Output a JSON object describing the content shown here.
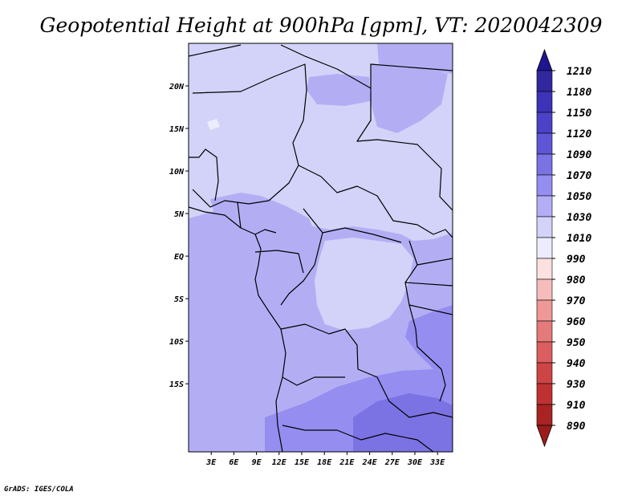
{
  "title": "Geopotential Height at 900hPa [gpm], VT: 2020042309",
  "credit": "GrADS: IGES/COLA",
  "map": {
    "lat_range": [
      -23,
      25
    ],
    "lon_range": [
      0,
      35
    ],
    "lat_ticks": [
      {
        "value": 20,
        "label": "20N"
      },
      {
        "value": 15,
        "label": "15N"
      },
      {
        "value": 10,
        "label": "10N"
      },
      {
        "value": 5,
        "label": "5N"
      },
      {
        "value": 0,
        "label": "EQ"
      },
      {
        "value": -5,
        "label": "5S"
      },
      {
        "value": -10,
        "label": "10S"
      },
      {
        "value": -15,
        "label": "15S"
      }
    ],
    "lon_ticks": [
      {
        "value": 3,
        "label": "3E"
      },
      {
        "value": 6,
        "label": "6E"
      },
      {
        "value": 9,
        "label": "9E"
      },
      {
        "value": 12,
        "label": "12E"
      },
      {
        "value": 15,
        "label": "15E"
      },
      {
        "value": 18,
        "label": "18E"
      },
      {
        "value": 21,
        "label": "21E"
      },
      {
        "value": 24,
        "label": "24E"
      },
      {
        "value": 27,
        "label": "27E"
      },
      {
        "value": 30,
        "label": "30E"
      },
      {
        "value": 33,
        "label": "33E"
      }
    ]
  },
  "colorbar": {
    "levels": [
      {
        "label": "1210",
        "color": "#2a1d9c"
      },
      {
        "label": "1180",
        "color": "#33279f"
      },
      {
        "label": "1150",
        "color": "#3d33b8"
      },
      {
        "label": "1120",
        "color": "#4b42c8"
      },
      {
        "label": "1090",
        "color": "#5e56d6"
      },
      {
        "label": "1070",
        "color": "#7b73e3"
      },
      {
        "label": "1050",
        "color": "#958ef0"
      },
      {
        "label": "1030",
        "color": "#b3aef4"
      },
      {
        "label": "1010",
        "color": "#d3d3f9"
      },
      {
        "label": "990",
        "color": "#ececfd"
      },
      {
        "label": "980",
        "color": "#fde0e0"
      },
      {
        "label": "970",
        "color": "#f6bcbc"
      },
      {
        "label": "960",
        "color": "#ee9898"
      },
      {
        "label": "950",
        "color": "#e47a7a"
      },
      {
        "label": "940",
        "color": "#da5e5e"
      },
      {
        "label": "930",
        "color": "#ce4545"
      },
      {
        "label": "910",
        "color": "#c03232"
      },
      {
        "label": "890",
        "color": "#a82323"
      }
    ],
    "top_arrow_color": "#1f1590",
    "bottom_arrow_color": "#9c1c1c"
  },
  "fill_colors": {
    "c1010": "#d3d3f9",
    "c1030": "#b3aef4",
    "c1050": "#958ef0",
    "c1070": "#7b73e3",
    "c990": "#ececfd",
    "ocean": "#b3aef4"
  }
}
